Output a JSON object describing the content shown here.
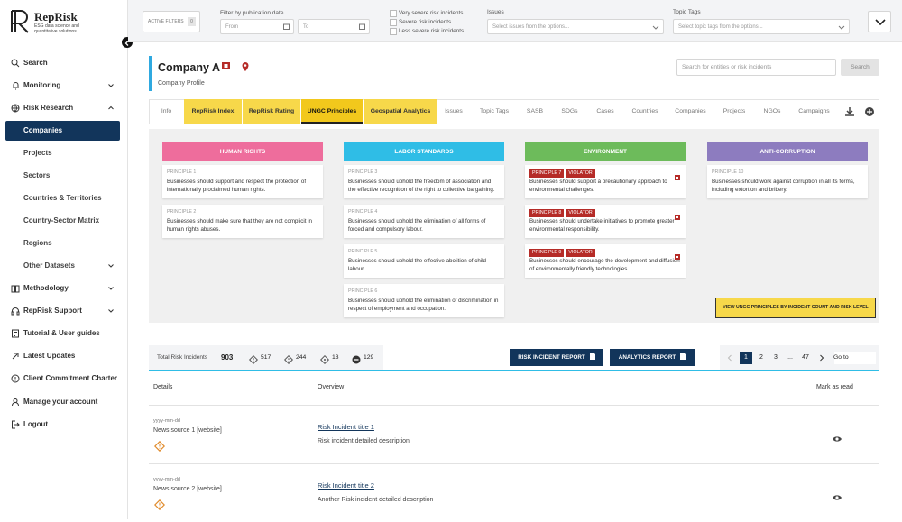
{
  "sidebar": {
    "brand": "RepRisk",
    "tagline": "ESG data science and quantitative solutions",
    "nav": [
      "Search",
      "Monitoring",
      "Risk Research",
      "Companies",
      "Projects",
      "Sectors",
      "Countries & Territories",
      "Country-Sector Matrix",
      "Regions",
      "Other Datasets",
      "Methodology",
      "RepRisk Support",
      "Tutorial & User guides",
      "Latest Updates",
      "Client Commitment Charter",
      "Manage your account",
      "Logout"
    ]
  },
  "filters": {
    "active_filters": "ACTIVE FILTERS",
    "active_count": "0",
    "date_label": "Filter by publication date",
    "from": "From",
    "to": "To",
    "severity": [
      "Very severe risk incidents",
      "Severe risk incidents",
      "Less severe risk incidents"
    ],
    "issues_label": "Issues",
    "issues_placeholder": "Select issues from the options...",
    "topic_tags_label": "Topic Tags",
    "topic_tags_placeholder": "Select topic tags from the options..."
  },
  "company": {
    "name": "Company A",
    "subtitle": "Company Profile",
    "search_placeholder": "Search for entities or risk incidents",
    "search_button": "Search"
  },
  "tabs": [
    "Info",
    "RepRisk Index",
    "RepRisk Rating",
    "UNGC Principles",
    "Geospatial Analytics",
    "Issues",
    "Topic Tags",
    "SASB",
    "SDGs",
    "Cases",
    "Countries",
    "Companies",
    "Projects",
    "NGOs",
    "Campaigns"
  ],
  "ungc": {
    "columns": [
      {
        "title": "HUMAN RIGHTS",
        "color": "#ee6d9c",
        "principles": [
          {
            "label": "PRINCIPLE 1",
            "text": "Businesses should support and respect the protection of internationally proclaimed human rights."
          },
          {
            "label": "PRINCIPLE 2",
            "text": "Businesses should make sure that they are not complicit in human rights abuses."
          }
        ]
      },
      {
        "title": "LABOR STANDARDS",
        "color": "#2fbde6",
        "principles": [
          {
            "label": "PRINCIPLE 3",
            "text": "Businesses should uphold the freedom of association and the effective recognition of the right to collective bargaining."
          },
          {
            "label": "PRINCIPLE 4",
            "text": "Businesses should uphold the elimination of all forms of forced and compulsory labour."
          },
          {
            "label": "PRINCIPLE 5",
            "text": "Businesses should uphold the effective abolition of child labour."
          },
          {
            "label": "PRINCIPLE 6",
            "text": "Businesses should uphold the elimination of discrimination in respect of employment and occupation."
          }
        ]
      },
      {
        "title": "ENVIRONMENT",
        "color": "#6dbb5b",
        "principles": [
          {
            "label": "PRINCIPLE 7",
            "status": "VIOLATOR",
            "text": "Businesses should support a precautionary approach to environmental challenges."
          },
          {
            "label": "PRINCIPLE 8",
            "status": "VIOLATOR",
            "text": "Businesses should undertake initiatives to promote greater environmental responsibility."
          },
          {
            "label": "PRINCIPLE 9",
            "status": "VIOLATOR",
            "text": "Businesses should encourage the development and diffusion of environmentally friendly technologies."
          }
        ]
      },
      {
        "title": "ANTI-CORRUPTION",
        "color": "#8d7cbf",
        "principles": [
          {
            "label": "PRINCIPLE 10",
            "text": "Businesses should work against corruption in all its forms, including extortion and bribery."
          }
        ]
      }
    ],
    "button": "VIEW UNGC PRINCIPLES BY INCIDENT COUNT AND RISK LEVEL"
  },
  "summary": {
    "label": "Total Risk Incidents",
    "total": 903,
    "counts": [
      517,
      244,
      13,
      129
    ]
  },
  "reports": [
    "RISK INCIDENT REPORT",
    "ANALYTICS REPORT"
  ],
  "pagination": {
    "pages": [
      "1",
      "2",
      "3",
      "...",
      "47"
    ],
    "goto": "Go to"
  },
  "table": {
    "headers": [
      "Details",
      "Overview",
      "Mark as read"
    ],
    "rows": [
      {
        "date": "yyyy-mm-dd",
        "source": "News source 1 [website]",
        "title": "Risk Incident title 1",
        "description": "Risk incident detailed description"
      },
      {
        "date": "yyyy-mm-dd",
        "source": "News source 2 [website]",
        "title": "Risk Incident title 2",
        "description": "Another Risk incident detailed description"
      }
    ]
  }
}
